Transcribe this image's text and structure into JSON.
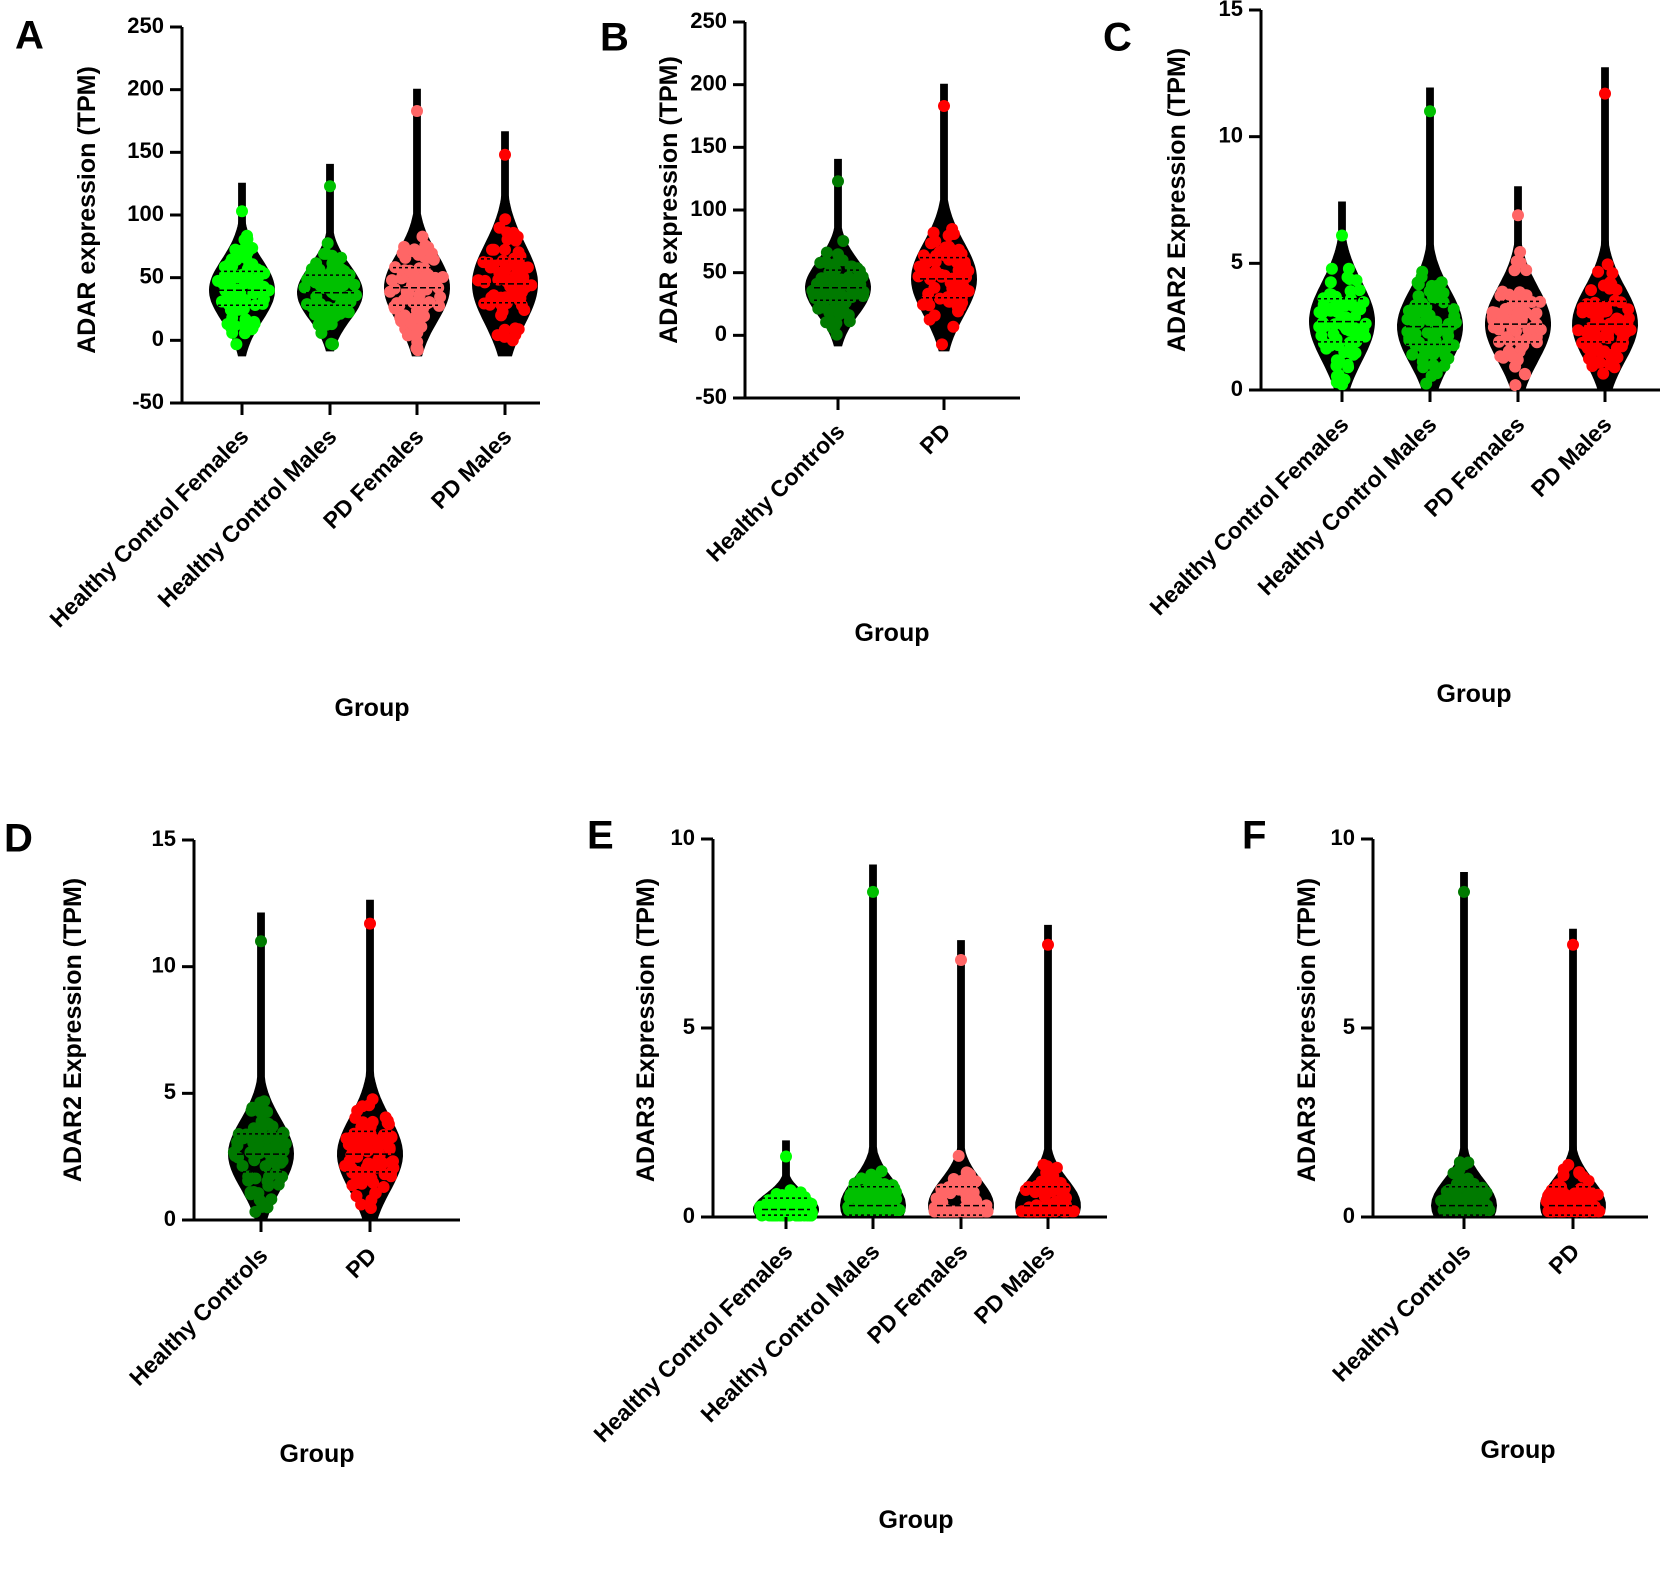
{
  "colors": {
    "hc_female": "#00ff00",
    "hc_male": "#00c000",
    "hc_combined": "#007a00",
    "pd_female": "#ff6666",
    "pd_male": "#ff0000",
    "pd_combined": "#ff0000",
    "violin": "#000000"
  },
  "chart_data": [
    {
      "panel": "A",
      "type": "violin",
      "ylabel": "ADAR expression (TPM)",
      "xlabel": "Group",
      "ylim": [
        -50,
        250
      ],
      "yticks": [
        -50,
        0,
        50,
        100,
        150,
        200,
        250
      ],
      "categories": [
        "Healthy Control Females",
        "Healthy Control Males",
        "PD Females",
        "PD Males"
      ],
      "series": [
        {
          "min": -12,
          "q1": 28,
          "median": 40,
          "q3": 55,
          "max": 125,
          "max_point": 103
        },
        {
          "min": -8,
          "q1": 28,
          "median": 38,
          "q3": 52,
          "max": 140,
          "max_point": 123
        },
        {
          "min": -12,
          "q1": 28,
          "median": 42,
          "q3": 58,
          "max": 200,
          "max_point": 183
        },
        {
          "min": -12,
          "q1": 30,
          "median": 45,
          "q3": 65,
          "max": 166,
          "max_point": 148
        }
      ]
    },
    {
      "panel": "B",
      "type": "violin",
      "ylabel": "ADAR expression (TPM)",
      "xlabel": "Group",
      "ylim": [
        -50,
        250
      ],
      "yticks": [
        -50,
        0,
        50,
        100,
        150,
        200,
        250
      ],
      "categories": [
        "Healthy Controls",
        "PD"
      ],
      "series": [
        {
          "min": -8,
          "q1": 28,
          "median": 38,
          "q3": 52,
          "max": 140,
          "max_point": 123
        },
        {
          "min": -12,
          "q1": 30,
          "median": 45,
          "q3": 62,
          "max": 200,
          "max_point": 183
        }
      ]
    },
    {
      "panel": "C",
      "type": "violin",
      "ylabel": "ADAR2 Expression (TPM)",
      "xlabel": "Group",
      "ylim": [
        0,
        15
      ],
      "yticks": [
        0,
        5,
        10,
        15
      ],
      "categories": [
        "Healthy Control Females",
        "Healthy Control Males",
        "PD Females",
        "PD Males"
      ],
      "series": [
        {
          "min": 0,
          "q1": 1.9,
          "median": 2.7,
          "q3": 3.6,
          "max": 7.4,
          "max_point": 6.1
        },
        {
          "min": 0,
          "q1": 1.8,
          "median": 2.5,
          "q3": 3.4,
          "max": 11.9,
          "max_point": 11.0
        },
        {
          "min": 0,
          "q1": 1.9,
          "median": 2.6,
          "q3": 3.5,
          "max": 8.0,
          "max_point": 6.9
        },
        {
          "min": 0,
          "q1": 1.9,
          "median": 2.6,
          "q3": 3.5,
          "max": 12.7,
          "max_point": 11.7
        }
      ]
    },
    {
      "panel": "D",
      "type": "violin",
      "ylabel": "ADAR2 Expression (TPM)",
      "xlabel": "Group",
      "ylim": [
        0,
        15
      ],
      "yticks": [
        0,
        5,
        10,
        15
      ],
      "categories": [
        "Healthy Controls",
        "PD"
      ],
      "series": [
        {
          "min": 0,
          "q1": 1.9,
          "median": 2.6,
          "q3": 3.4,
          "max": 12.1,
          "max_point": 11.0
        },
        {
          "min": 0,
          "q1": 1.9,
          "median": 2.6,
          "q3": 3.5,
          "max": 12.6,
          "max_point": 11.7
        }
      ]
    },
    {
      "panel": "E",
      "type": "violin",
      "ylabel": "ADAR3 Expression (TPM)",
      "xlabel": "Group",
      "ylim": [
        0,
        10
      ],
      "yticks": [
        0,
        5,
        10
      ],
      "categories": [
        "Healthy Control Females",
        "Healthy Control Males",
        "PD Females",
        "PD Males"
      ],
      "series": [
        {
          "min": 0,
          "q1": 0.05,
          "median": 0.2,
          "q3": 0.5,
          "max": 2.0,
          "max_point": 1.6
        },
        {
          "min": 0,
          "q1": 0.05,
          "median": 0.3,
          "q3": 0.8,
          "max": 9.3,
          "max_point": 8.6
        },
        {
          "min": 0,
          "q1": 0.05,
          "median": 0.3,
          "q3": 0.8,
          "max": 7.3,
          "max_point": 6.8
        },
        {
          "min": 0,
          "q1": 0.05,
          "median": 0.3,
          "q3": 0.8,
          "max": 7.7,
          "max_point": 7.2
        }
      ]
    },
    {
      "panel": "F",
      "type": "violin",
      "ylabel": "ADAR3 Expression (TPM)",
      "xlabel": "Group",
      "ylim": [
        0,
        10
      ],
      "yticks": [
        0,
        5,
        10
      ],
      "categories": [
        "Healthy Controls",
        "PD"
      ],
      "series": [
        {
          "min": 0,
          "q1": 0.05,
          "median": 0.3,
          "q3": 0.8,
          "max": 9.1,
          "max_point": 8.6
        },
        {
          "min": 0,
          "q1": 0.05,
          "median": 0.3,
          "q3": 0.8,
          "max": 7.6,
          "max_point": 7.2
        }
      ]
    }
  ]
}
